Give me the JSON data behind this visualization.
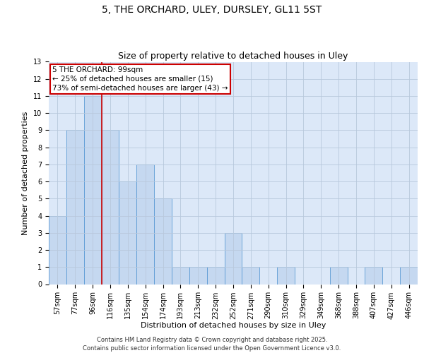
{
  "title": "5, THE ORCHARD, ULEY, DURSLEY, GL11 5ST",
  "subtitle": "Size of property relative to detached houses in Uley",
  "xlabel": "Distribution of detached houses by size in Uley",
  "ylabel": "Number of detached properties",
  "categories": [
    "57sqm",
    "77sqm",
    "96sqm",
    "116sqm",
    "135sqm",
    "154sqm",
    "174sqm",
    "193sqm",
    "213sqm",
    "232sqm",
    "252sqm",
    "271sqm",
    "290sqm",
    "310sqm",
    "329sqm",
    "349sqm",
    "368sqm",
    "388sqm",
    "407sqm",
    "427sqm",
    "446sqm"
  ],
  "values": [
    4,
    9,
    11,
    9,
    6,
    7,
    5,
    1,
    1,
    1,
    3,
    1,
    0,
    1,
    0,
    0,
    1,
    0,
    1,
    0,
    1
  ],
  "bar_color": "#c5d8f0",
  "bar_edge_color": "#5b9bd5",
  "grid_color": "#b8c8dc",
  "background_color": "#dce8f8",
  "property_line_index": 2,
  "property_line_color": "#cc0000",
  "annotation_text": "5 THE ORCHARD: 99sqm\n← 25% of detached houses are smaller (15)\n73% of semi-detached houses are larger (43) →",
  "annotation_box_color": "#cc0000",
  "ylim": [
    0,
    13
  ],
  "yticks": [
    0,
    1,
    2,
    3,
    4,
    5,
    6,
    7,
    8,
    9,
    10,
    11,
    12,
    13
  ],
  "footer_text": "Contains HM Land Registry data © Crown copyright and database right 2025.\nContains public sector information licensed under the Open Government Licence v3.0.",
  "title_fontsize": 10,
  "subtitle_fontsize": 9,
  "axis_label_fontsize": 8,
  "tick_fontsize": 7,
  "annotation_fontsize": 7.5,
  "footer_fontsize": 6
}
